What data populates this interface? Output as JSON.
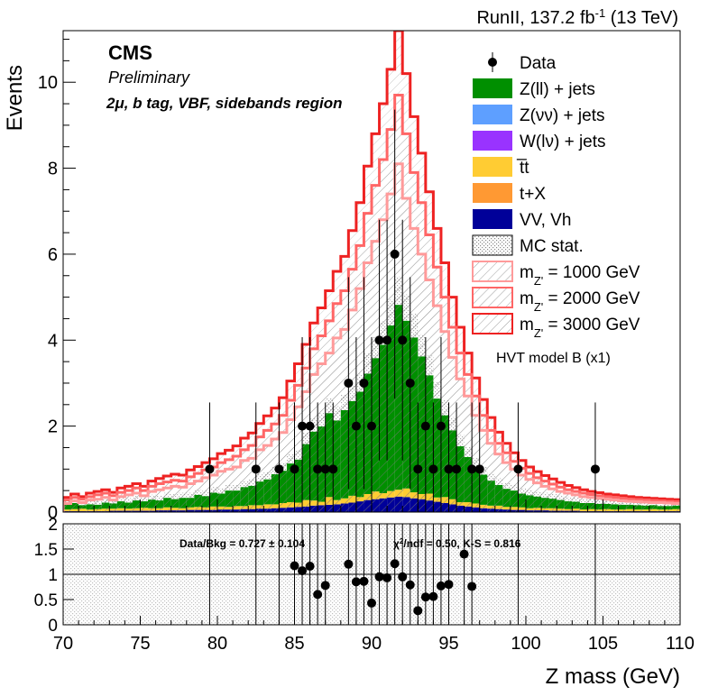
{
  "chart_data": {
    "type": "bar",
    "upper": {
      "ylabel": "Events",
      "xlim": [
        70,
        110
      ],
      "ylim": [
        0,
        11.2
      ],
      "yticks": [
        0,
        2,
        4,
        6,
        8,
        10
      ],
      "lumi_label": "RunII, 137.2 fb⁻¹  (13 TeV)",
      "cms_label": "CMS",
      "preliminary_label": "Preliminary",
      "region_label": "2μ, b tag, VBF, sidebands region",
      "model_label": "HVT model B (x1)",
      "legend": [
        {
          "label": "Data",
          "kind": "marker",
          "color": "#000000"
        },
        {
          "label": "Z(ll) + jets",
          "kind": "fill",
          "color": "#008f00"
        },
        {
          "label": "Z(νν) + jets",
          "kind": "fill",
          "color": "#5e9fff"
        },
        {
          "label": "W(lν) + jets",
          "kind": "fill",
          "color": "#9933ff"
        },
        {
          "label": "t̅t",
          "kind": "fill",
          "color": "#ffcc33"
        },
        {
          "label": "t+X",
          "kind": "fill",
          "color": "#ff9933"
        },
        {
          "label": "VV, Vh",
          "kind": "fill",
          "color": "#000099"
        },
        {
          "label": "MC stat.",
          "kind": "dots",
          "color": "#999999"
        },
        {
          "label": "mₓ = 1000 GeV",
          "kind": "hatch",
          "color": "#ff9a9a",
          "label_main": "m",
          "label_sub": "Z'",
          "label_rest": " = 1000 GeV"
        },
        {
          "label": "2000",
          "kind": "hatch",
          "color": "#ff6666",
          "label_main": "m",
          "label_sub": "Z'",
          "label_rest": " = 2000 GeV"
        },
        {
          "label": "3000",
          "kind": "hatch",
          "color": "#ee2222",
          "label_main": "m",
          "label_sub": "Z'",
          "label_rest": " = 3000 GeV"
        }
      ],
      "bin_width": 0.5,
      "z_ll_jets": [
        0.12,
        0.14,
        0.08,
        0.12,
        0.1,
        0.14,
        0.12,
        0.16,
        0.14,
        0.18,
        0.15,
        0.2,
        0.18,
        0.22,
        0.2,
        0.24,
        0.22,
        0.28,
        0.26,
        0.32,
        0.3,
        0.38,
        0.36,
        0.44,
        0.45,
        0.55,
        0.58,
        0.7,
        0.75,
        0.9,
        1.0,
        1.3,
        1.6,
        1.75,
        1.95,
        1.85,
        2.05,
        2.2,
        2.45,
        2.8,
        3.1,
        3.45,
        3.85,
        4.3,
        3.9,
        3.6,
        3.2,
        2.75,
        2.3,
        1.9,
        1.6,
        1.3,
        1.05,
        0.85,
        0.7,
        0.58,
        0.48,
        0.42,
        0.38,
        0.32,
        0.3,
        0.26,
        0.24,
        0.22,
        0.2,
        0.18,
        0.16,
        0.15,
        0.14,
        0.13,
        0.12,
        0.12,
        0.11,
        0.1,
        0.1,
        0.09,
        0.09,
        0.08,
        0.08,
        0.08
      ],
      "vv_vh": [
        0.02,
        0.02,
        0.02,
        0.02,
        0.02,
        0.02,
        0.03,
        0.03,
        0.03,
        0.03,
        0.03,
        0.03,
        0.04,
        0.04,
        0.04,
        0.04,
        0.05,
        0.05,
        0.05,
        0.05,
        0.06,
        0.06,
        0.06,
        0.07,
        0.07,
        0.08,
        0.08,
        0.09,
        0.1,
        0.11,
        0.12,
        0.13,
        0.15,
        0.16,
        0.17,
        0.18,
        0.2,
        0.22,
        0.25,
        0.28,
        0.3,
        0.32,
        0.34,
        0.36,
        0.35,
        0.32,
        0.3,
        0.27,
        0.24,
        0.21,
        0.18,
        0.15,
        0.13,
        0.11,
        0.09,
        0.08,
        0.07,
        0.06,
        0.05,
        0.05,
        0.04,
        0.04,
        0.04,
        0.03,
        0.03,
        0.03,
        0.03,
        0.02,
        0.02,
        0.02,
        0.02,
        0.02,
        0.02,
        0.02,
        0.02,
        0.02,
        0.02,
        0.02,
        0.02,
        0.02
      ],
      "ttbar": [
        0.04,
        0.05,
        0.06,
        0.04,
        0.05,
        0.06,
        0.05,
        0.06,
        0.05,
        0.06,
        0.07,
        0.06,
        0.05,
        0.07,
        0.06,
        0.05,
        0.06,
        0.07,
        0.06,
        0.08,
        0.07,
        0.06,
        0.08,
        0.07,
        0.09,
        0.08,
        0.1,
        0.09,
        0.11,
        0.12,
        0.1,
        0.15,
        0.12,
        0.08,
        0.18,
        0.1,
        0.12,
        0.16,
        0.1,
        0.14,
        0.18,
        0.12,
        0.15,
        0.16,
        0.2,
        0.14,
        0.12,
        0.16,
        0.1,
        0.14,
        0.12,
        0.08,
        0.1,
        0.09,
        0.08,
        0.07,
        0.08,
        0.06,
        0.07,
        0.06,
        0.05,
        0.06,
        0.05,
        0.06,
        0.05,
        0.04,
        0.05,
        0.04,
        0.05,
        0.04,
        0.05,
        0.04,
        0.04,
        0.05,
        0.04,
        0.04,
        0.05,
        0.04,
        0.04,
        0.05
      ],
      "signal_1000": [
        0.2,
        0.26,
        0.22,
        0.28,
        0.3,
        0.34,
        0.28,
        0.36,
        0.4,
        0.44,
        0.38,
        0.48,
        0.52,
        0.56,
        0.6,
        0.58,
        0.66,
        0.72,
        0.8,
        0.86,
        0.95,
        1.0,
        1.05,
        1.2,
        1.25,
        1.45,
        1.55,
        1.7,
        1.85,
        2.15,
        2.45,
        2.8,
        3.2,
        3.45,
        3.7,
        4.05,
        4.25,
        4.7,
        5.2,
        5.8,
        6.3,
        6.8,
        7.4,
        8.1,
        7.3,
        6.6,
        6.0,
        5.4,
        4.8,
        4.2,
        3.6,
        3.1,
        2.7,
        2.25,
        1.9,
        1.6,
        1.35,
        1.15,
        1.0,
        0.86,
        0.76,
        0.68,
        0.6,
        0.54,
        0.48,
        0.44,
        0.4,
        0.36,
        0.34,
        0.32,
        0.3,
        0.28,
        0.26,
        0.25,
        0.24,
        0.23,
        0.22,
        0.22,
        0.21,
        0.2
      ],
      "signal_2000": [
        0.28,
        0.34,
        0.3,
        0.36,
        0.4,
        0.44,
        0.38,
        0.46,
        0.5,
        0.56,
        0.5,
        0.6,
        0.66,
        0.7,
        0.74,
        0.72,
        0.82,
        0.9,
        0.98,
        1.05,
        1.15,
        1.22,
        1.3,
        1.45,
        1.55,
        1.75,
        1.9,
        2.05,
        2.25,
        2.6,
        2.95,
        3.35,
        3.8,
        4.1,
        4.45,
        4.85,
        5.15,
        5.65,
        6.2,
        6.95,
        7.6,
        8.2,
        8.9,
        9.7,
        8.8,
        7.9,
        7.2,
        6.45,
        5.7,
        5.0,
        4.3,
        3.7,
        3.2,
        2.7,
        2.25,
        1.9,
        1.6,
        1.38,
        1.18,
        1.02,
        0.9,
        0.8,
        0.72,
        0.65,
        0.58,
        0.52,
        0.48,
        0.44,
        0.41,
        0.38,
        0.36,
        0.34,
        0.32,
        0.3,
        0.29,
        0.28,
        0.27,
        0.26,
        0.25,
        0.24
      ],
      "signal_3000": [
        0.34,
        0.42,
        0.36,
        0.44,
        0.48,
        0.52,
        0.46,
        0.56,
        0.6,
        0.66,
        0.6,
        0.72,
        0.78,
        0.84,
        0.88,
        0.86,
        0.98,
        1.06,
        1.15,
        1.24,
        1.36,
        1.44,
        1.54,
        1.72,
        1.84,
        2.06,
        2.24,
        2.42,
        2.66,
        3.05,
        3.45,
        3.9,
        4.4,
        4.75,
        5.15,
        5.6,
        5.95,
        6.55,
        7.2,
        8.05,
        8.8,
        9.5,
        10.3,
        11.2,
        10.2,
        9.2,
        8.35,
        7.45,
        6.6,
        5.8,
        5.0,
        4.3,
        3.7,
        3.12,
        2.62,
        2.2,
        1.86,
        1.6,
        1.38,
        1.2,
        1.05,
        0.94,
        0.85,
        0.77,
        0.69,
        0.62,
        0.57,
        0.52,
        0.48,
        0.45,
        0.42,
        0.4,
        0.38,
        0.36,
        0.34,
        0.33,
        0.32,
        0.31,
        0.3,
        0.29
      ],
      "data_points": [
        {
          "x": 79.5,
          "y": 1
        },
        {
          "x": 82.5,
          "y": 1
        },
        {
          "x": 84.0,
          "y": 1
        },
        {
          "x": 85.0,
          "y": 1
        },
        {
          "x": 85.5,
          "y": 2
        },
        {
          "x": 86.0,
          "y": 2
        },
        {
          "x": 86.5,
          "y": 1
        },
        {
          "x": 87.0,
          "y": 1
        },
        {
          "x": 87.5,
          "y": 1
        },
        {
          "x": 88.5,
          "y": 3
        },
        {
          "x": 89.0,
          "y": 2
        },
        {
          "x": 89.5,
          "y": 3
        },
        {
          "x": 90.0,
          "y": 2
        },
        {
          "x": 90.5,
          "y": 4
        },
        {
          "x": 91.0,
          "y": 4
        },
        {
          "x": 91.5,
          "y": 6
        },
        {
          "x": 92.0,
          "y": 4
        },
        {
          "x": 92.5,
          "y": 3
        },
        {
          "x": 93.0,
          "y": 1
        },
        {
          "x": 93.5,
          "y": 2
        },
        {
          "x": 94.0,
          "y": 1
        },
        {
          "x": 94.5,
          "y": 2
        },
        {
          "x": 95.0,
          "y": 1
        },
        {
          "x": 95.5,
          "y": 1
        },
        {
          "x": 96.5,
          "y": 1
        },
        {
          "x": 97.0,
          "y": 1
        },
        {
          "x": 99.5,
          "y": 1
        },
        {
          "x": 104.5,
          "y": 1
        }
      ]
    },
    "lower": {
      "ylim": [
        0,
        2
      ],
      "yticks": [
        "0",
        "0.5",
        "1",
        "1.5",
        "2"
      ],
      "xticks": [
        "70",
        "75",
        "80",
        "85",
        "90",
        "95",
        "100",
        "105",
        "110"
      ],
      "xlabel": "Z mass (GeV)",
      "ratio_label": "Data/Bkg = 0.727 ± 0.104",
      "chi2_prefix": "χ",
      "chi2_sup": "2",
      "chi2_rest": "/ndf = 0.50,   K-S = 0.816",
      "ratio_points": [
        {
          "x": 85.0,
          "y": 1.17
        },
        {
          "x": 85.5,
          "y": 1.07
        },
        {
          "x": 86.0,
          "y": 1.16
        },
        {
          "x": 86.5,
          "y": 0.6
        },
        {
          "x": 87.0,
          "y": 0.78
        },
        {
          "x": 88.5,
          "y": 1.2
        },
        {
          "x": 89.0,
          "y": 0.85
        },
        {
          "x": 89.5,
          "y": 0.86
        },
        {
          "x": 90.0,
          "y": 0.43
        },
        {
          "x": 90.5,
          "y": 0.95
        },
        {
          "x": 91.0,
          "y": 0.93
        },
        {
          "x": 91.5,
          "y": 1.21
        },
        {
          "x": 92.0,
          "y": 0.95
        },
        {
          "x": 92.5,
          "y": 0.79
        },
        {
          "x": 93.0,
          "y": 0.28
        },
        {
          "x": 93.5,
          "y": 0.55
        },
        {
          "x": 94.0,
          "y": 0.56
        },
        {
          "x": 94.5,
          "y": 0.77
        },
        {
          "x": 95.0,
          "y": 0.8
        },
        {
          "x": 96.0,
          "y": 1.4
        },
        {
          "x": 96.5,
          "y": 0.76
        }
      ],
      "ratio_error_xs": [
        79.5,
        82.5,
        84.0,
        85.0,
        85.5,
        86.0,
        86.5,
        87.0,
        88.5,
        89.0,
        89.5,
        90.0,
        90.5,
        91.0,
        91.5,
        92.0,
        92.5,
        93.0,
        93.5,
        94.0,
        94.5,
        95.0,
        96.0,
        96.5,
        99.5,
        104.5
      ]
    }
  }
}
